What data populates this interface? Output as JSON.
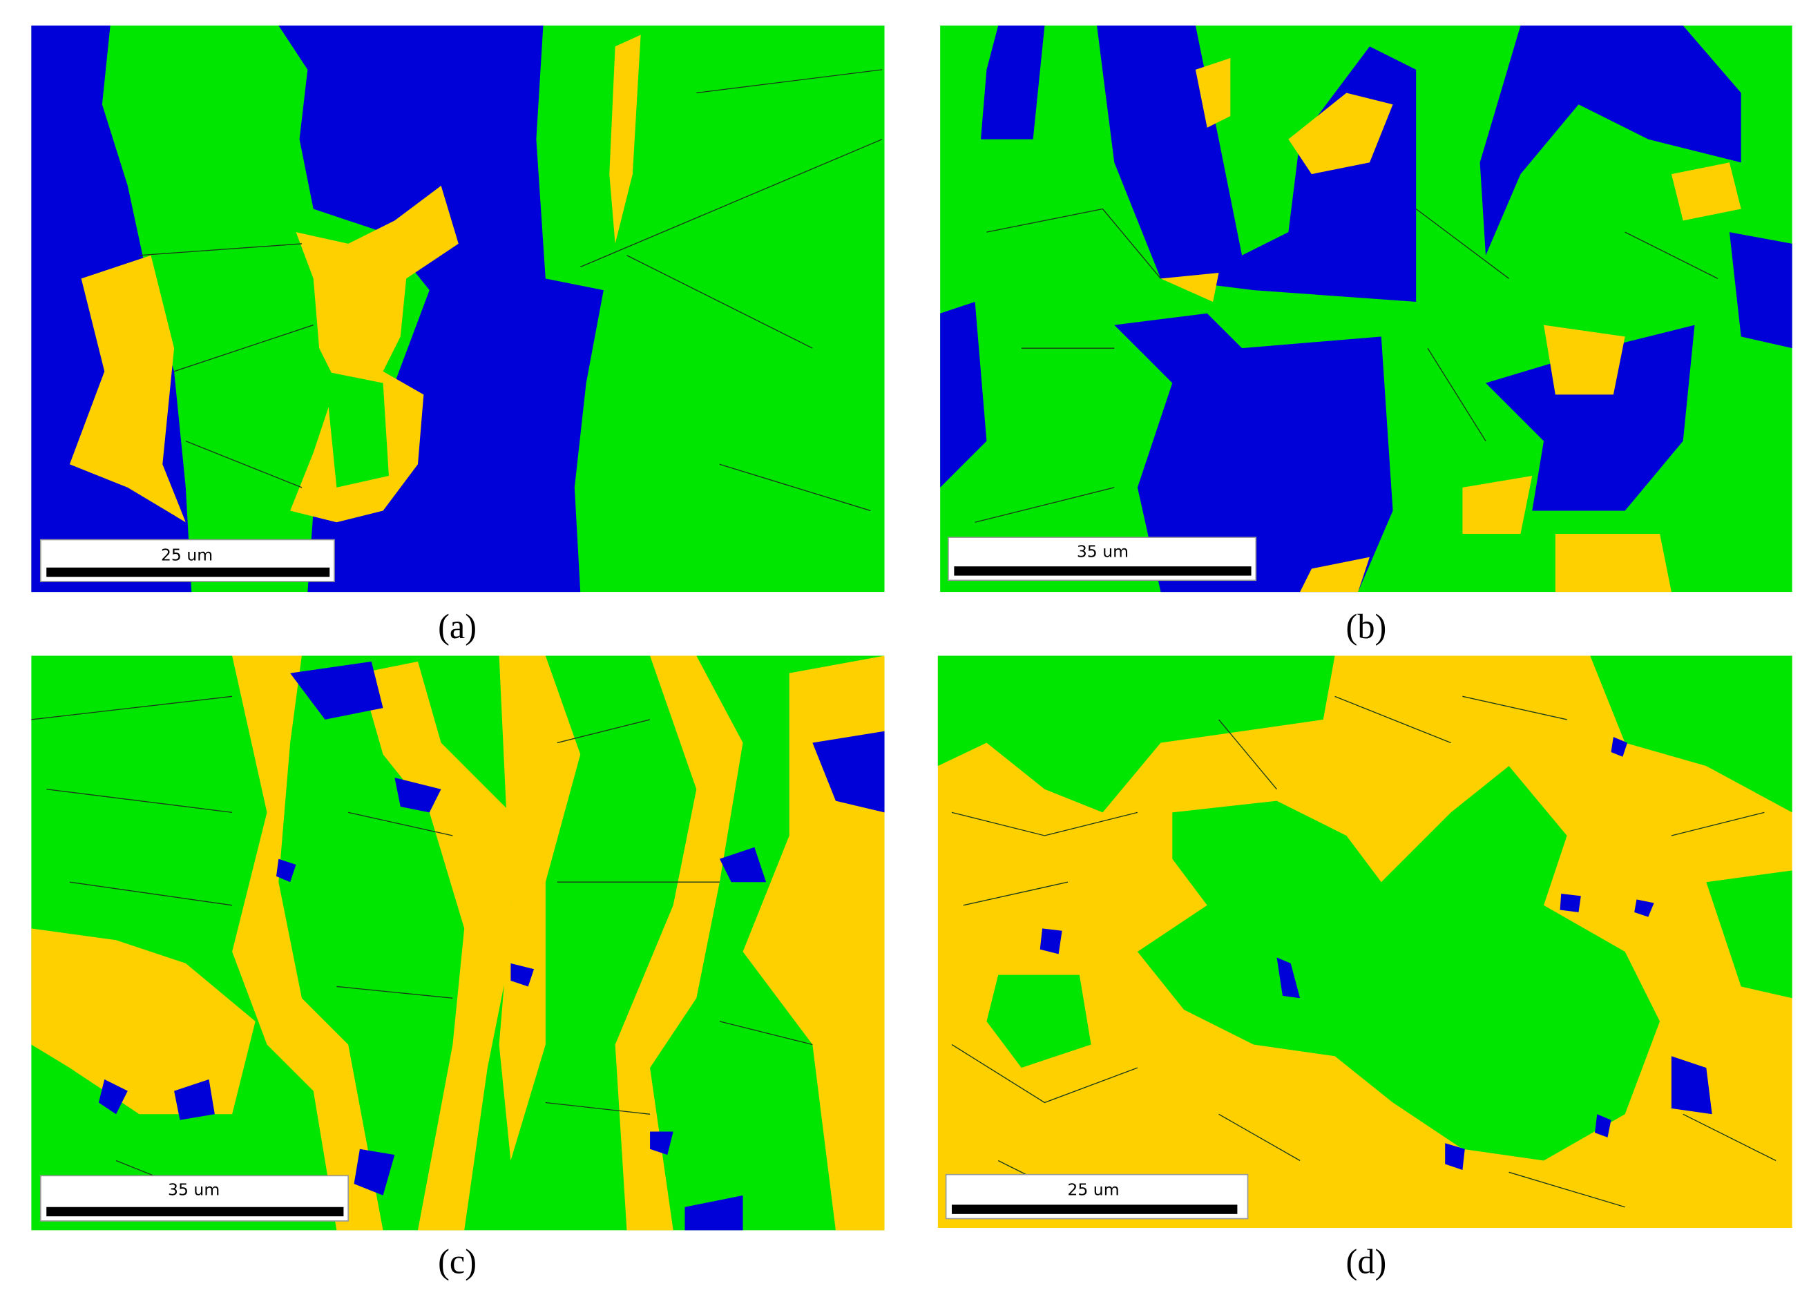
{
  "panels": [
    {
      "caption": "(a)",
      "scale_label": "25 um"
    },
    {
      "caption": "(b)",
      "scale_label": "35 um"
    },
    {
      "caption": "(c)",
      "scale_label": "35 um"
    },
    {
      "caption": "(d)",
      "scale_label": "25 um"
    }
  ]
}
